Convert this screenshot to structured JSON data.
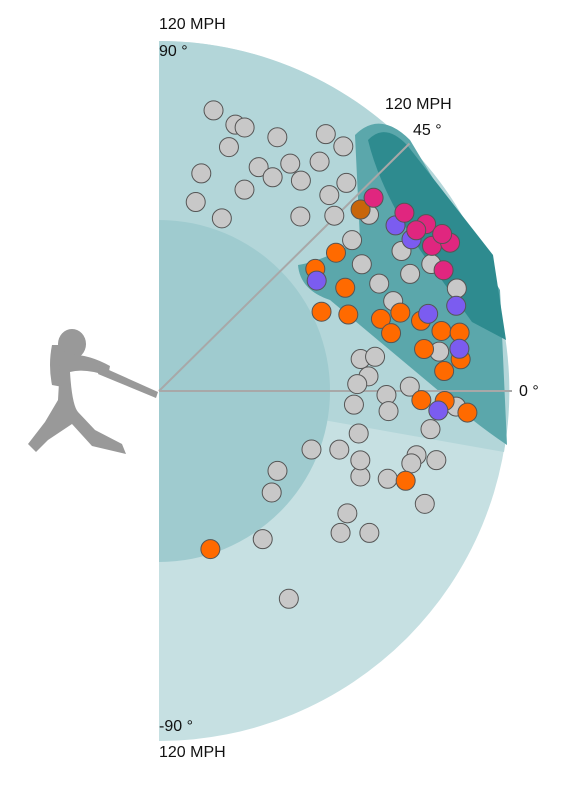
{
  "chart_data": {
    "type": "scatter",
    "polar": true,
    "rlim": [
      0,
      120
    ],
    "rticks": [
      {
        "value": 120,
        "label": "120 MPH"
      }
    ],
    "xticks": [
      {
        "value": -90,
        "label": "-90 °"
      },
      {
        "value": 0,
        "label": "0 °"
      },
      {
        "value": 45,
        "label": "45 °"
      },
      {
        "value": 90,
        "label": "90 °"
      }
    ],
    "series": [
      {
        "color": "#c8c8c8",
        "x": [
          79,
          74,
          72,
          74,
          65,
          57,
          53,
          79,
          66,
          62,
          60,
          55,
          67,
          79,
          70,
          51,
          56,
          49,
          48,
          45,
          38,
          40,
          32,
          26,
          21,
          25,
          30,
          25,
          9,
          9,
          4,
          2,
          -4,
          -1,
          -5,
          1,
          -8,
          -14,
          -14,
          -16,
          -21,
          -23,
          -19,
          -12,
          -21,
          -18,
          -34,
          -42,
          -33,
          -38,
          -34,
          -23,
          -55,
          -58,
          -3,
          19,
          8
        ],
        "values": [
          98,
          95,
          95,
          87,
          96,
          105,
          105,
          76,
          84,
          83,
          90,
          96,
          75,
          66,
          63,
          77,
          87,
          89,
          96,
          85,
          84,
          94,
          82,
          84,
          86,
          95,
          96,
          103,
          70,
          75,
          72,
          68,
          67,
          78,
          79,
          86,
          94,
          91,
          98,
          90,
          84,
          75,
          73,
          70,
          56,
          65,
          49,
          52,
          77,
          79,
          87,
          99,
          62,
          84,
          102,
          108,
          97
        ]
      },
      {
        "color": "#ff6a00",
        "x": [
          -72,
          -20,
          38,
          38,
          29,
          26,
          22,
          18,
          18,
          15,
          12,
          11,
          9,
          4,
          -2,
          -2,
          -4,
          14,
          6
        ],
        "values": [
          57,
          90,
          68,
          77,
          73,
          62,
          70,
          80,
          87,
          93,
          99,
          105,
          92,
          98,
          90,
          98,
          106,
          82,
          104
        ]
      },
      {
        "color": "#c8650a",
        "x": [
          42
        ],
        "values": [
          93
        ]
      },
      {
        "color": "#7b5cf0",
        "x": [
          35,
          31,
          16,
          8,
          16,
          -4,
          35
        ],
        "values": [
          66,
          101,
          96,
          104,
          106,
          96,
          99
        ]
      },
      {
        "color": "#e0267f",
        "x": [
          42,
          36,
          32,
          28,
          23,
          27,
          32,
          29
        ],
        "values": [
          99,
          104,
          108,
          106,
          106,
          112,
          104,
          111
        ]
      }
    ]
  }
}
